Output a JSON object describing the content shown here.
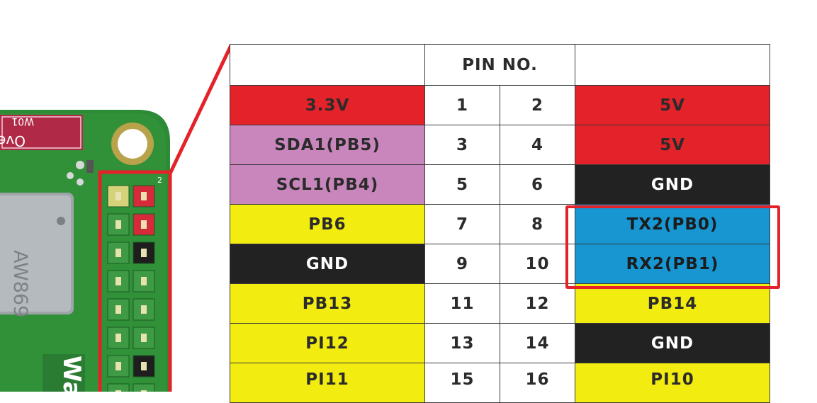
{
  "board": {
    "chip_label": "AW869",
    "sticker_text": "OverAir",
    "sticker_sub": "W01",
    "edge_text": "Wa",
    "silk_label": "2"
  },
  "table": {
    "header": "PIN NO.",
    "rows": [
      {
        "left": "3.3V",
        "left_color": "red",
        "n1": "1",
        "n2": "2",
        "right": "5V",
        "right_color": "red"
      },
      {
        "left": "SDA1(PB5)",
        "left_color": "purple",
        "n1": "3",
        "n2": "4",
        "right": "5V",
        "right_color": "red"
      },
      {
        "left": "SCL1(PB4)",
        "left_color": "purple",
        "n1": "5",
        "n2": "6",
        "right": "GND",
        "right_color": "black"
      },
      {
        "left": "PB6",
        "left_color": "yellow",
        "n1": "7",
        "n2": "8",
        "right": "TX2(PB0)",
        "right_color": "blue"
      },
      {
        "left": "GND",
        "left_color": "black",
        "n1": "9",
        "n2": "10",
        "right": "RX2(PB1)",
        "right_color": "blue"
      },
      {
        "left": "PB13",
        "left_color": "yellow",
        "n1": "11",
        "n2": "12",
        "right": "PB14",
        "right_color": "yellow"
      },
      {
        "left": "PI12",
        "left_color": "yellow",
        "n1": "13",
        "n2": "14",
        "right": "GND",
        "right_color": "black"
      },
      {
        "left": "PI11",
        "left_color": "yellow",
        "n1": "15",
        "n2": "16",
        "right": "PI10",
        "right_color": "yellow"
      }
    ]
  },
  "colors": {
    "red": "#e3222a",
    "purple": "#c886bc",
    "black": "#222222",
    "yellow": "#f2ec10",
    "blue": "#1796d2",
    "pcb_green": "#2f8f3a",
    "highlight": "#e3222a"
  }
}
